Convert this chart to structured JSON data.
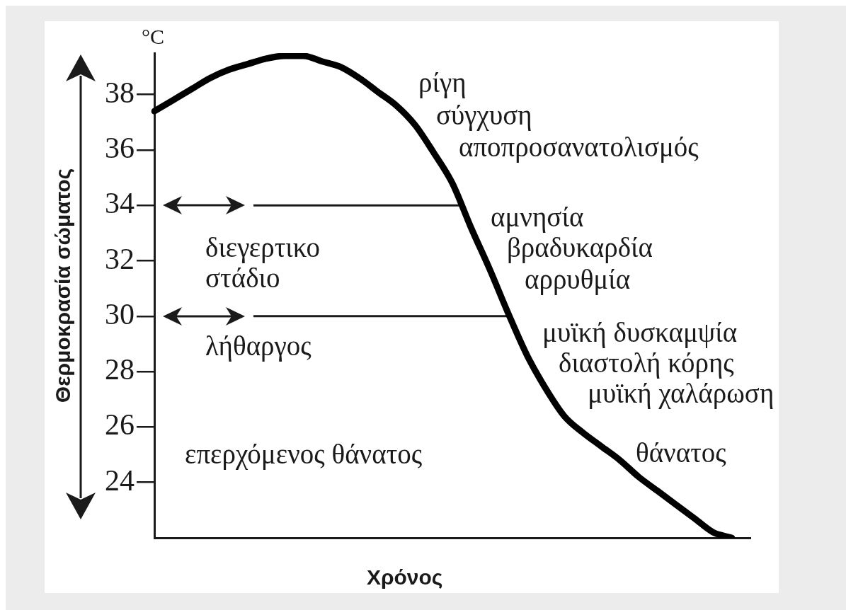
{
  "chart_data": {
    "type": "line",
    "xlabel": "Χρόνος",
    "ylabel": "Θερμοκρασία σώματος",
    "categories": [
      null,
      null,
      null,
      null,
      null,
      null,
      null,
      null,
      null,
      null,
      null,
      null,
      null,
      null,
      null,
      null,
      null,
      null,
      null,
      null,
      null,
      null,
      null,
      null,
      null,
      null,
      null,
      null,
      null,
      null,
      null,
      null,
      null
    ],
    "values": [
      37.4,
      37.8,
      38.2,
      38.6,
      38.9,
      39.1,
      39.3,
      39.4,
      39.4,
      39.2,
      39.0,
      38.6,
      38.1,
      37.6,
      36.9,
      35.9,
      34.8,
      33.2,
      31.7,
      30.1,
      28.6,
      27.4,
      26.4,
      25.8,
      25.3,
      24.8,
      24.2,
      23.7,
      23.2,
      22.7,
      22.2,
      22.0,
      null
    ],
    "color": "#000000",
    "ylim": [
      22,
      39.5
    ],
    "yticks": [
      24,
      26,
      28,
      30,
      32,
      34,
      36,
      38
    ],
    "ref_lines": [
      {
        "axis": "y",
        "value": 34
      },
      {
        "axis": "y",
        "value": 30
      }
    ],
    "annotations": [
      "°C",
      "διεγερτικο στάδιο",
      "λήθαργος",
      "επερχόμενος θάνατος",
      "ρίγη",
      "σύγχυση",
      "αποπροσανατολισμός",
      "αμνησία",
      "βραδυκαρδία",
      "αρρυθμία",
      "μυϊκή δυσκαμψία",
      "διαστολή κόρης",
      "μυϊκή χαλάρωση",
      "θάνατος"
    ]
  }
}
